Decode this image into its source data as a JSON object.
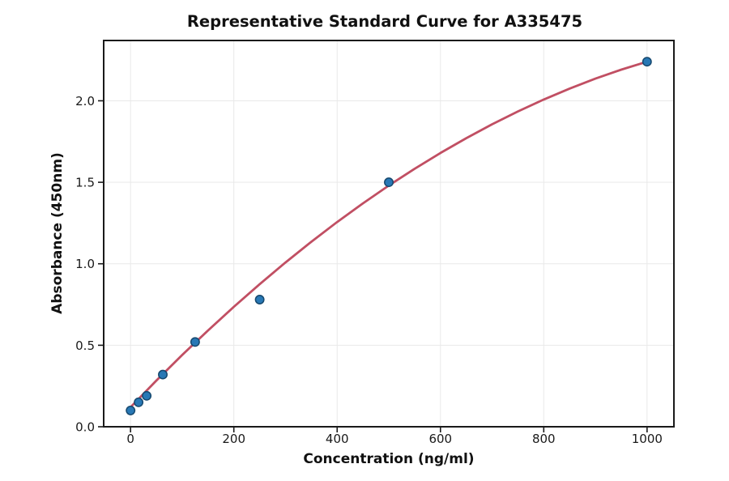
{
  "figure": {
    "background": "#ffffff"
  },
  "chart_data": {
    "type": "scatter",
    "title": "Representative Standard Curve for A335475",
    "xlabel": "Concentration (ng/ml)",
    "ylabel": "Absorbance (450nm)",
    "xlim": [
      -52,
      1052
    ],
    "ylim": [
      0,
      2.37
    ],
    "xticks": [
      0,
      200,
      400,
      600,
      800,
      1000
    ],
    "xtick_labels": [
      "0",
      "200",
      "400",
      "600",
      "800",
      "1000"
    ],
    "yticks": [
      0,
      0.5,
      1.0,
      1.5,
      2.0
    ],
    "ytick_labels": [
      "0.0",
      "0.5",
      "1.0",
      "1.5",
      "2.0"
    ],
    "grid": true,
    "legend": "none",
    "series": [
      {
        "name": "standard-points",
        "type": "scatter",
        "x": [
          0,
          15.6,
          31.25,
          62.5,
          125,
          250,
          500,
          1000
        ],
        "y": [
          0.1,
          0.15,
          0.19,
          0.32,
          0.52,
          0.78,
          1.5,
          2.24
        ],
        "marker_color": "#2878B5",
        "marker_edge_color": "#16486E"
      },
      {
        "name": "fit-curve",
        "type": "line",
        "x": [
          0,
          50,
          100,
          150,
          200,
          250,
          300,
          350,
          400,
          450,
          500,
          550,
          600,
          650,
          700,
          750,
          800,
          850,
          900,
          950,
          1000
        ],
        "y": [
          0.12,
          0.283,
          0.44,
          0.591,
          0.736,
          0.875,
          1.008,
          1.135,
          1.256,
          1.371,
          1.48,
          1.583,
          1.68,
          1.771,
          1.856,
          1.935,
          2.008,
          2.075,
          2.136,
          2.191,
          2.24
        ],
        "color": "#C14F63"
      }
    ],
    "style": {
      "grid_color": "#e9e9e9",
      "spine_color": "#1a1a1a",
      "tick_color": "#1a1a1a",
      "text_color": "#111111",
      "background_color": "#ffffff"
    }
  }
}
